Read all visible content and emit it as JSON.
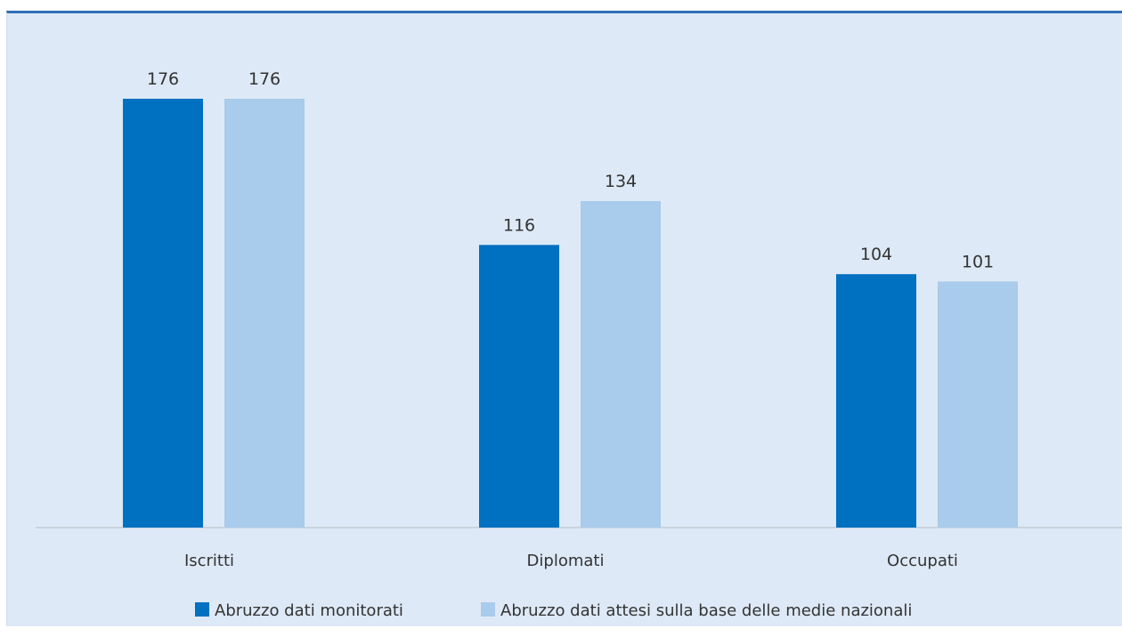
{
  "chart_data": {
    "type": "bar",
    "title": "",
    "xlabel": "",
    "ylabel": "",
    "categories": [
      "Iscritti",
      "Diplomati",
      "Occupati"
    ],
    "series": [
      {
        "name": "Abruzzo dati monitorati",
        "color": "#0070c0",
        "values": [
          176,
          116,
          104
        ]
      },
      {
        "name": "Abruzzo dati attesi sulla base delle medie nazionali",
        "color": "#a9cbec",
        "values": [
          176,
          134,
          101
        ]
      }
    ],
    "ylim": [
      0,
      176
    ],
    "grid": false,
    "legend_position": "bottom",
    "data_labels": true
  },
  "colors": {
    "background": "#dde9f6",
    "axis": "#c4ccd6",
    "top_rule": "#2f6eb5"
  }
}
